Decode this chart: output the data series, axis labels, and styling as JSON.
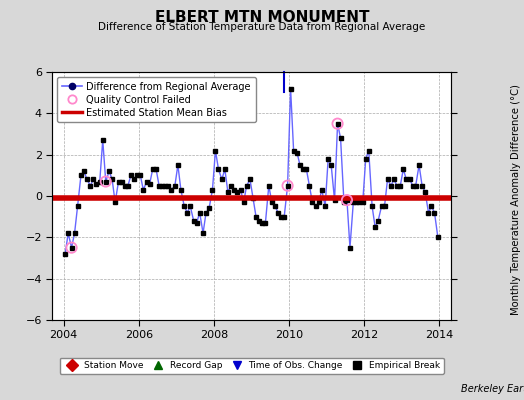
{
  "title": "ELBERT MTN MONUMENT",
  "subtitle": "Difference of Station Temperature Data from Regional Average",
  "ylabel_right": "Monthly Temperature Anomaly Difference (°C)",
  "credit": "Berkeley Earth",
  "ylim": [
    -6,
    6
  ],
  "xlim": [
    2003.7,
    2014.3
  ],
  "xticks": [
    2004,
    2006,
    2008,
    2010,
    2012,
    2014
  ],
  "yticks": [
    -6,
    -4,
    -2,
    0,
    2,
    4,
    6
  ],
  "bias_value": -0.1,
  "bg_color": "#d8d8d8",
  "plot_bg_color": "#ffffff",
  "line_color": "#6666ff",
  "dot_color": "#000000",
  "bias_color": "#cc0000",
  "qc_color": "#ff88cc",
  "time_series": [
    [
      2004.04,
      -2.8
    ],
    [
      2004.12,
      -1.8
    ],
    [
      2004.21,
      -2.5
    ],
    [
      2004.29,
      -1.8
    ],
    [
      2004.37,
      -0.5
    ],
    [
      2004.46,
      1.0
    ],
    [
      2004.54,
      1.2
    ],
    [
      2004.62,
      0.8
    ],
    [
      2004.71,
      0.5
    ],
    [
      2004.79,
      0.8
    ],
    [
      2004.87,
      0.6
    ],
    [
      2004.96,
      0.7
    ],
    [
      2005.04,
      2.7
    ],
    [
      2005.12,
      0.7
    ],
    [
      2005.21,
      1.2
    ],
    [
      2005.29,
      0.8
    ],
    [
      2005.37,
      -0.3
    ],
    [
      2005.46,
      0.7
    ],
    [
      2005.54,
      0.7
    ],
    [
      2005.62,
      0.5
    ],
    [
      2005.71,
      0.5
    ],
    [
      2005.79,
      1.0
    ],
    [
      2005.87,
      0.8
    ],
    [
      2005.96,
      1.0
    ],
    [
      2006.04,
      1.0
    ],
    [
      2006.12,
      0.3
    ],
    [
      2006.21,
      0.7
    ],
    [
      2006.29,
      0.6
    ],
    [
      2006.37,
      1.3
    ],
    [
      2006.46,
      1.3
    ],
    [
      2006.54,
      0.5
    ],
    [
      2006.62,
      0.5
    ],
    [
      2006.71,
      0.5
    ],
    [
      2006.79,
      0.5
    ],
    [
      2006.87,
      0.3
    ],
    [
      2006.96,
      0.5
    ],
    [
      2007.04,
      1.5
    ],
    [
      2007.12,
      0.3
    ],
    [
      2007.21,
      -0.5
    ],
    [
      2007.29,
      -0.8
    ],
    [
      2007.37,
      -0.5
    ],
    [
      2007.46,
      -1.2
    ],
    [
      2007.54,
      -1.3
    ],
    [
      2007.62,
      -0.8
    ],
    [
      2007.71,
      -1.8
    ],
    [
      2007.79,
      -0.8
    ],
    [
      2007.87,
      -0.6
    ],
    [
      2007.96,
      0.3
    ],
    [
      2008.04,
      2.2
    ],
    [
      2008.12,
      1.3
    ],
    [
      2008.21,
      0.8
    ],
    [
      2008.29,
      1.3
    ],
    [
      2008.37,
      0.2
    ],
    [
      2008.46,
      0.5
    ],
    [
      2008.54,
      0.3
    ],
    [
      2008.62,
      0.2
    ],
    [
      2008.71,
      0.3
    ],
    [
      2008.79,
      -0.3
    ],
    [
      2008.87,
      0.5
    ],
    [
      2008.96,
      0.8
    ],
    [
      2009.04,
      -0.1
    ],
    [
      2009.12,
      -1.0
    ],
    [
      2009.21,
      -1.2
    ],
    [
      2009.29,
      -1.3
    ],
    [
      2009.37,
      -1.3
    ],
    [
      2009.46,
      0.5
    ],
    [
      2009.54,
      -0.3
    ],
    [
      2009.62,
      -0.5
    ],
    [
      2009.71,
      -0.8
    ],
    [
      2009.79,
      -1.0
    ],
    [
      2009.87,
      -1.0
    ],
    [
      2009.96,
      0.5
    ],
    [
      2010.04,
      5.2
    ],
    [
      2010.12,
      2.2
    ],
    [
      2010.21,
      2.1
    ],
    [
      2010.29,
      1.5
    ],
    [
      2010.37,
      1.3
    ],
    [
      2010.46,
      1.3
    ],
    [
      2010.54,
      0.5
    ],
    [
      2010.62,
      -0.3
    ],
    [
      2010.71,
      -0.5
    ],
    [
      2010.79,
      -0.3
    ],
    [
      2010.87,
      0.3
    ],
    [
      2010.96,
      -0.5
    ],
    [
      2011.04,
      1.8
    ],
    [
      2011.12,
      1.5
    ],
    [
      2011.21,
      -0.2
    ],
    [
      2011.29,
      3.5
    ],
    [
      2011.37,
      2.8
    ],
    [
      2011.46,
      -0.3
    ],
    [
      2011.54,
      -0.2
    ],
    [
      2011.62,
      -2.5
    ],
    [
      2011.71,
      -0.3
    ],
    [
      2011.79,
      -0.3
    ],
    [
      2011.87,
      -0.3
    ],
    [
      2011.96,
      -0.3
    ],
    [
      2012.04,
      1.8
    ],
    [
      2012.12,
      2.2
    ],
    [
      2012.21,
      -0.5
    ],
    [
      2012.29,
      -1.5
    ],
    [
      2012.37,
      -1.2
    ],
    [
      2012.46,
      -0.5
    ],
    [
      2012.54,
      -0.5
    ],
    [
      2012.62,
      0.8
    ],
    [
      2012.71,
      0.5
    ],
    [
      2012.79,
      0.8
    ],
    [
      2012.87,
      0.5
    ],
    [
      2012.96,
      0.5
    ],
    [
      2013.04,
      1.3
    ],
    [
      2013.12,
      0.8
    ],
    [
      2013.21,
      0.8
    ],
    [
      2013.29,
      0.5
    ],
    [
      2013.37,
      0.5
    ],
    [
      2013.46,
      1.5
    ],
    [
      2013.54,
      0.5
    ],
    [
      2013.62,
      0.2
    ],
    [
      2013.71,
      -0.8
    ],
    [
      2013.79,
      -0.5
    ],
    [
      2013.87,
      -0.8
    ],
    [
      2013.96,
      -2.0
    ]
  ],
  "qc_failed_points": [
    [
      2004.21,
      -2.5
    ],
    [
      2005.12,
      0.7
    ],
    [
      2009.96,
      0.5
    ],
    [
      2011.29,
      3.5
    ],
    [
      2011.54,
      -0.2
    ]
  ],
  "time_obs_change_x": 2009.87,
  "legend1_items": [
    {
      "label": "Difference from Regional Average"
    },
    {
      "label": "Quality Control Failed"
    },
    {
      "label": "Estimated Station Mean Bias"
    }
  ],
  "legend2_items": [
    {
      "label": "Station Move",
      "color": "#cc0000",
      "marker": "D"
    },
    {
      "label": "Record Gap",
      "color": "#006600",
      "marker": "^"
    },
    {
      "label": "Time of Obs. Change",
      "color": "#0000cc",
      "marker": "v"
    },
    {
      "label": "Empirical Break",
      "color": "#000000",
      "marker": "s"
    }
  ]
}
